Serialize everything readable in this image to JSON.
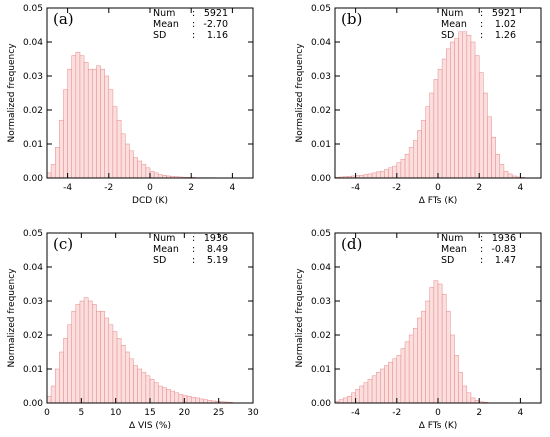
{
  "chart_data": [
    {
      "type": "bar",
      "panel_label": "(a)",
      "xlabel": "DCD (K)",
      "ylabel": "Normalized frequency",
      "xlim": [
        -5,
        5
      ],
      "ylim": [
        0,
        0.05
      ],
      "xticks": [
        -4,
        -2,
        0,
        2,
        4
      ],
      "yticks": [
        "0.00",
        "0.01",
        "0.02",
        "0.03",
        "0.04",
        "0.05"
      ],
      "stats": {
        "num_label": "Num",
        "num": "5921",
        "mean_label": "Mean",
        "mean": "-2.70",
        "sd_label": "SD",
        "sd": "1.16"
      },
      "x": [
        -5.0,
        -4.8,
        -4.6,
        -4.4,
        -4.2,
        -4.0,
        -3.8,
        -3.6,
        -3.4,
        -3.2,
        -3.0,
        -2.8,
        -2.6,
        -2.4,
        -2.2,
        -2.0,
        -1.8,
        -1.6,
        -1.4,
        -1.2,
        -1.0,
        -0.8,
        -0.6,
        -0.4,
        -0.2,
        0.0,
        0.2,
        0.4,
        0.6,
        0.8,
        1.0,
        1.2,
        1.4,
        1.6,
        1.8,
        2.0,
        2.2,
        2.4,
        2.6,
        2.8,
        3.0
      ],
      "values": [
        0.0015,
        0.004,
        0.009,
        0.017,
        0.026,
        0.032,
        0.036,
        0.037,
        0.036,
        0.034,
        0.032,
        0.032,
        0.033,
        0.032,
        0.03,
        0.026,
        0.021,
        0.017,
        0.013,
        0.01,
        0.008,
        0.006,
        0.005,
        0.004,
        0.003,
        0.002,
        0.0015,
        0.001,
        0.0008,
        0.0006,
        0.0005,
        0.0004,
        0.0003,
        0.0002,
        0.0002,
        0.0002,
        0.0001,
        0.0001,
        0.0001,
        0.0001,
        0.0001
      ]
    },
    {
      "type": "bar",
      "panel_label": "(b)",
      "xlabel": "Δ FTs (K)",
      "ylabel": "Normalized frequency",
      "xlim": [
        -5,
        5
      ],
      "ylim": [
        0,
        0.05
      ],
      "xticks": [
        -4,
        -2,
        0,
        2,
        4
      ],
      "yticks": [
        "0.00",
        "0.01",
        "0.02",
        "0.03",
        "0.04",
        "0.05"
      ],
      "stats": {
        "num_label": "Num",
        "num": "5921",
        "mean_label": "Mean",
        "mean": "1.02",
        "sd_label": "SD",
        "sd": "1.26"
      },
      "x": [
        -5.0,
        -4.8,
        -4.6,
        -4.4,
        -4.2,
        -4.0,
        -3.8,
        -3.6,
        -3.4,
        -3.2,
        -3.0,
        -2.8,
        -2.6,
        -2.4,
        -2.2,
        -2.0,
        -1.8,
        -1.6,
        -1.4,
        -1.2,
        -1.0,
        -0.8,
        -0.6,
        -0.4,
        -0.2,
        0.0,
        0.2,
        0.4,
        0.6,
        0.8,
        1.0,
        1.2,
        1.4,
        1.6,
        1.8,
        2.0,
        2.2,
        2.4,
        2.6,
        2.8,
        3.0,
        3.2,
        3.4,
        3.6,
        3.8,
        4.0
      ],
      "values": [
        0.0002,
        0.0003,
        0.0004,
        0.0005,
        0.0006,
        0.0007,
        0.0008,
        0.001,
        0.0012,
        0.0015,
        0.0018,
        0.002,
        0.0025,
        0.003,
        0.0035,
        0.0045,
        0.0055,
        0.007,
        0.009,
        0.011,
        0.014,
        0.017,
        0.021,
        0.025,
        0.029,
        0.032,
        0.035,
        0.038,
        0.04,
        0.041,
        0.043,
        0.043,
        0.042,
        0.04,
        0.036,
        0.031,
        0.025,
        0.018,
        0.012,
        0.007,
        0.004,
        0.002,
        0.0012,
        0.0006,
        0.0003,
        0.0002
      ]
    },
    {
      "type": "bar",
      "panel_label": "(c)",
      "xlabel": "Δ VIS (%)",
      "ylabel": "Normalized frequency",
      "xlim": [
        0,
        30
      ],
      "ylim": [
        0,
        0.05
      ],
      "xticks": [
        0,
        5,
        10,
        15,
        20,
        25,
        30
      ],
      "yticks": [
        "0.00",
        "0.01",
        "0.02",
        "0.03",
        "0.04",
        "0.05"
      ],
      "stats": {
        "num_label": "Num",
        "num": "1936",
        "mean_label": "Mean",
        "mean": "8.49",
        "sd_label": "SD",
        "sd": "5.19"
      },
      "x": [
        0.0,
        0.6,
        1.2,
        1.8,
        2.4,
        3.0,
        3.6,
        4.2,
        4.8,
        5.4,
        6.0,
        6.6,
        7.2,
        7.8,
        8.4,
        9.0,
        9.6,
        10.2,
        10.8,
        11.4,
        12.0,
        12.6,
        13.2,
        13.8,
        14.4,
        15.0,
        15.6,
        16.2,
        16.8,
        17.4,
        18.0,
        18.6,
        19.2,
        19.8,
        20.4,
        21.0,
        21.6,
        22.2,
        22.8,
        23.4,
        24.0,
        24.6,
        25.2,
        25.8,
        26.4
      ],
      "values": [
        0.002,
        0.005,
        0.01,
        0.015,
        0.019,
        0.023,
        0.027,
        0.029,
        0.03,
        0.031,
        0.03,
        0.029,
        0.027,
        0.027,
        0.025,
        0.023,
        0.021,
        0.019,
        0.017,
        0.015,
        0.013,
        0.011,
        0.01,
        0.009,
        0.008,
        0.007,
        0.006,
        0.005,
        0.0045,
        0.004,
        0.0035,
        0.003,
        0.0025,
        0.0022,
        0.002,
        0.0017,
        0.0015,
        0.0012,
        0.001,
        0.0008,
        0.0006,
        0.0005,
        0.0004,
        0.0003,
        0.0002
      ]
    },
    {
      "type": "bar",
      "panel_label": "(d)",
      "xlabel": "Δ FTs (K)",
      "ylabel": "Normalized frequency",
      "xlim": [
        -5,
        5
      ],
      "ylim": [
        0,
        0.05
      ],
      "xticks": [
        -4,
        -2,
        0,
        2,
        4
      ],
      "yticks": [
        "0.00",
        "0.01",
        "0.02",
        "0.03",
        "0.04",
        "0.05"
      ],
      "stats": {
        "num_label": "Num",
        "num": "1936",
        "mean_label": "Mean",
        "mean": "-0.83",
        "sd_label": "SD",
        "sd": "1.47"
      },
      "x": [
        -5.0,
        -4.8,
        -4.6,
        -4.4,
        -4.2,
        -4.0,
        -3.8,
        -3.6,
        -3.4,
        -3.2,
        -3.0,
        -2.8,
        -2.6,
        -2.4,
        -2.2,
        -2.0,
        -1.8,
        -1.6,
        -1.4,
        -1.2,
        -1.0,
        -0.8,
        -0.6,
        -0.4,
        -0.2,
        0.0,
        0.2,
        0.4,
        0.6,
        0.8,
        1.0,
        1.2,
        1.4,
        1.6,
        1.8,
        2.0,
        2.2
      ],
      "values": [
        0.0005,
        0.001,
        0.0015,
        0.002,
        0.003,
        0.004,
        0.005,
        0.006,
        0.007,
        0.008,
        0.009,
        0.01,
        0.011,
        0.012,
        0.013,
        0.014,
        0.016,
        0.018,
        0.02,
        0.022,
        0.025,
        0.027,
        0.03,
        0.034,
        0.036,
        0.035,
        0.032,
        0.027,
        0.02,
        0.014,
        0.009,
        0.005,
        0.003,
        0.0015,
        0.0008,
        0.0004,
        0.0002
      ]
    }
  ]
}
